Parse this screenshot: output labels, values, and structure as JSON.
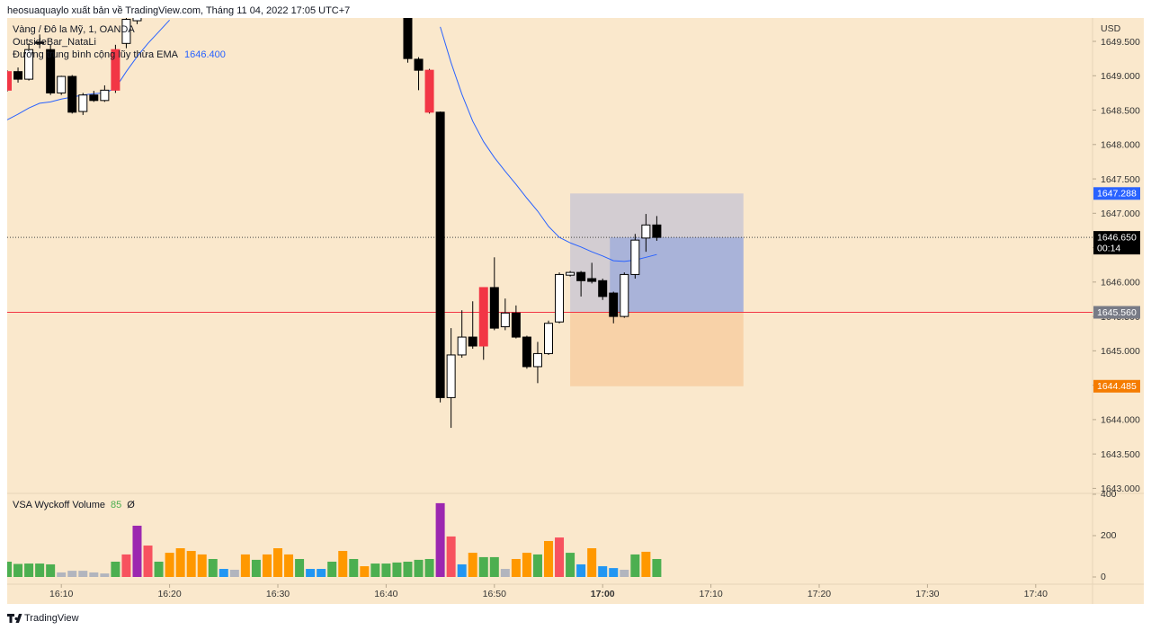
{
  "chart_data": {
    "type": "candlestick",
    "publisher_line": "heosuaquaylo xuất bản về TradingView.com, Tháng 11 04, 2022 17:05 UTC+7",
    "symbol": "Vàng / Đô la Mỹ, 1, OANDA",
    "indicator_1": "OutsideBar_NataLi",
    "ema": {
      "name": "Đường trung bình cộng lũy thừa EMA",
      "color": "#2962ff",
      "values": [
        1648.36,
        1648.44,
        1648.53,
        1648.6,
        1648.62,
        1648.66,
        1648.69,
        1648.72,
        1648.74,
        1648.75,
        1648.82,
        1649.06,
        1649.28,
        1649.47,
        1649.64,
        1649.81,
        null,
        null,
        null,
        null,
        null,
        null,
        null,
        null,
        null,
        null,
        null,
        null,
        null,
        null,
        null,
        null,
        null,
        null,
        null,
        null,
        null,
        null,
        null,
        null,
        1649.71,
        1649.19,
        1648.73,
        1648.34,
        1648.04,
        1647.81,
        1647.61,
        1647.42,
        1647.22,
        1647.03,
        1646.81,
        1646.65,
        1646.57,
        1646.51,
        1646.44,
        1646.38,
        1646.31,
        1646.3,
        1646.32,
        1646.36,
        1646.4
      ],
      "value": 1646.4,
      "value_label": "1646.400"
    },
    "currency": "USD",
    "categories": [
      "16:05",
      "16:06",
      "16:07",
      "16:08",
      "16:09",
      "16:10",
      "16:11",
      "16:12",
      "16:13",
      "16:14",
      "16:15",
      "16:16",
      "16:17",
      "16:18",
      "16:19",
      "16:20",
      "16:21",
      "16:22",
      "16:23",
      "16:24",
      "16:25",
      "16:26",
      "16:27",
      "16:28",
      "16:29",
      "16:30",
      "16:31",
      "16:32",
      "16:33",
      "16:34",
      "16:35",
      "16:36",
      "16:37",
      "16:38",
      "16:39",
      "16:40",
      "16:41",
      "16:42",
      "16:43",
      "16:44",
      "16:45",
      "16:46",
      "16:47",
      "16:48",
      "16:49",
      "16:50",
      "16:51",
      "16:52",
      "16:53",
      "16:54",
      "16:55",
      "16:56",
      "16:57",
      "16:58",
      "16:59",
      "17:00",
      "17:01",
      "17:02",
      "17:03",
      "17:04",
      "17:05"
    ],
    "open": [
      1649.06,
      1649.06,
      1648.95,
      1649.49,
      1649.38,
      1648.75,
      1648.99,
      1648.48,
      1648.72,
      1648.64,
      1648.79,
      1649.47,
      1649.8,
      null,
      null,
      null,
      null,
      null,
      null,
      null,
      null,
      null,
      null,
      null,
      null,
      null,
      null,
      null,
      null,
      null,
      null,
      null,
      null,
      null,
      null,
      null,
      null,
      1649.9,
      1649.24,
      1649.08,
      1648.47,
      1644.32,
      1644.94,
      1645.2,
      1645.07,
      1645.92,
      1645.35,
      1645.55,
      1645.2,
      1644.77,
      1644.96,
      1645.42,
      1646.1,
      1646.14,
      1646.05,
      1646.02,
      1645.84,
      1645.5,
      1646.11,
      1646.64,
      1646.83
    ],
    "high": [
      1649.08,
      1649.12,
      1649.47,
      1649.6,
      1649.45,
      1649.0,
      1649.01,
      1648.75,
      1648.78,
      1648.86,
      1649.45,
      1649.9,
      1650.0,
      null,
      null,
      null,
      null,
      null,
      null,
      null,
      null,
      null,
      null,
      null,
      null,
      null,
      null,
      null,
      null,
      null,
      null,
      null,
      null,
      null,
      null,
      null,
      null,
      1650.0,
      1649.27,
      1649.1,
      1648.48,
      1645.33,
      1645.59,
      1645.72,
      1645.92,
      1646.36,
      1645.76,
      1645.66,
      1645.22,
      1645.13,
      1645.44,
      1646.14,
      1646.16,
      1646.16,
      1646.28,
      1646.05,
      1645.86,
      1646.14,
      1646.7,
      1646.99,
      1646.96
    ],
    "low": [
      1648.77,
      1648.9,
      1648.93,
      1649.4,
      1648.72,
      1648.72,
      1648.45,
      1648.43,
      1648.62,
      1648.62,
      1648.75,
      1649.4,
      1649.75,
      null,
      null,
      null,
      null,
      null,
      null,
      null,
      null,
      null,
      null,
      null,
      null,
      null,
      null,
      null,
      null,
      null,
      null,
      null,
      null,
      null,
      null,
      null,
      null,
      1649.19,
      1648.79,
      1648.45,
      1644.25,
      1643.88,
      1644.9,
      1645.03,
      1644.87,
      1645.3,
      1645.3,
      1645.18,
      1644.74,
      1644.53,
      1644.94,
      1645.4,
      1646.08,
      1645.79,
      1645.98,
      1645.74,
      1645.4,
      1645.48,
      1646.05,
      1646.44,
      1646.6
    ],
    "close": [
      1648.79,
      1648.95,
      1649.38,
      1649.47,
      1648.75,
      1648.99,
      1648.47,
      1648.72,
      1648.64,
      1648.79,
      1649.38,
      1649.82,
      1649.9,
      null,
      null,
      null,
      null,
      null,
      null,
      null,
      null,
      null,
      null,
      null,
      null,
      null,
      null,
      null,
      null,
      null,
      null,
      null,
      null,
      null,
      null,
      null,
      null,
      1649.25,
      1649.08,
      1648.47,
      1644.32,
      1644.94,
      1645.2,
      1645.07,
      1645.92,
      1645.33,
      1645.55,
      1645.2,
      1644.77,
      1644.96,
      1645.4,
      1646.11,
      1646.14,
      1646.02,
      1646.01,
      1645.79,
      1645.5,
      1646.11,
      1646.61,
      1646.83,
      1646.65
    ],
    "candle_colors": [
      "#f23645",
      "#000000",
      "#ffffff",
      "#000000",
      "#000000",
      "#ffffff",
      "#000000",
      "#ffffff",
      "#000000",
      "#ffffff",
      "#f23645",
      "#ffffff",
      "#ffffff",
      null,
      null,
      null,
      null,
      null,
      null,
      null,
      null,
      null,
      null,
      null,
      null,
      null,
      null,
      null,
      null,
      null,
      null,
      null,
      null,
      null,
      null,
      null,
      null,
      "#000000",
      "#000000",
      "#f23645",
      "#000000",
      "#ffffff",
      "#ffffff",
      "#000000",
      "#f23645",
      "#000000",
      "#ffffff",
      "#000000",
      "#000000",
      "#ffffff",
      "#ffffff",
      "#ffffff",
      "#ffffff",
      "#000000",
      "#000000",
      "#000000",
      "#000000",
      "#ffffff",
      "#ffffff",
      "#ffffff",
      "#000000"
    ],
    "xlim": [
      "16:05",
      "17:45"
    ],
    "xticks": [
      "16:10",
      "16:20",
      "16:30",
      "16:40",
      "16:50",
      "17:00",
      "17:10",
      "17:20",
      "17:30",
      "17:40"
    ],
    "ylim": [
      1642.94,
      1649.84
    ],
    "yticks": [
      {
        "value": 1649.5,
        "label": "1649.500"
      },
      {
        "value": 1649.0,
        "label": "1649.000"
      },
      {
        "value": 1648.5,
        "label": "1648.500"
      },
      {
        "value": 1648.0,
        "label": "1648.000"
      },
      {
        "value": 1647.5,
        "label": "1647.500"
      },
      {
        "value": 1647.0,
        "label": "1647.000"
      },
      {
        "value": 1646.5,
        "label": "1646.500"
      },
      {
        "value": 1646.0,
        "label": "1646.000"
      },
      {
        "value": 1645.5,
        "label": "1645.500"
      },
      {
        "value": 1645.0,
        "label": "1645.000"
      },
      {
        "value": 1644.5,
        "label": "1644.500"
      },
      {
        "value": 1644.0,
        "label": "1644.000"
      },
      {
        "value": 1643.5,
        "label": "1643.500"
      },
      {
        "value": 1643.0,
        "label": "1643.000"
      }
    ],
    "last_price": {
      "value": 1646.65,
      "label": "1646.650",
      "countdown": "00:14"
    },
    "position": {
      "start": "16:57",
      "end": "17:13",
      "entry_time": "17:01",
      "target": 1647.288,
      "entry": {
        "value": 1645.56,
        "label": "1645.560"
      },
      "stop": 1644.485
    },
    "volume": {
      "name": "VSA Wyckoff Volume",
      "setting": 85,
      "extra": "Ø",
      "values": [
        74,
        63,
        65,
        65,
        61,
        22,
        30,
        30,
        22,
        17,
        74,
        109,
        248,
        152,
        74,
        117,
        139,
        126,
        109,
        87,
        39,
        35,
        109,
        83,
        109,
        139,
        109,
        87,
        39,
        39,
        74,
        126,
        87,
        52,
        65,
        65,
        70,
        74,
        83,
        87,
        357,
        196,
        61,
        117,
        96,
        96,
        39,
        87,
        117,
        109,
        174,
        191,
        117,
        61,
        139,
        52,
        43,
        35,
        109,
        122,
        87
      ],
      "colors": [
        "#4caf50",
        "#4caf50",
        "#4caf50",
        "#4caf50",
        "#4caf50",
        "#b2b5be",
        "#b2b5be",
        "#b2b5be",
        "#b2b5be",
        "#b2b5be",
        "#4caf50",
        "#f7525f",
        "#9c27b0",
        "#f7525f",
        "#4caf50",
        "#ff9800",
        "#ff9800",
        "#ff9800",
        "#ff9800",
        "#4caf50",
        "#2196f3",
        "#b2b5be",
        "#ff9800",
        "#4caf50",
        "#ff9800",
        "#ff9800",
        "#ff9800",
        "#4caf50",
        "#2196f3",
        "#2196f3",
        "#4caf50",
        "#ff9800",
        "#4caf50",
        "#ff9800",
        "#4caf50",
        "#4caf50",
        "#4caf50",
        "#4caf50",
        "#4caf50",
        "#4caf50",
        "#9c27b0",
        "#f7525f",
        "#2196f3",
        "#ff9800",
        "#4caf50",
        "#4caf50",
        "#b2b5be",
        "#ff9800",
        "#ff9800",
        "#4caf50",
        "#ff9800",
        "#f7525f",
        "#4caf50",
        "#2196f3",
        "#ff9800",
        "#2196f3",
        "#2196f3",
        "#b2b5be",
        "#4caf50",
        "#ff9800",
        "#4caf50"
      ],
      "vlim": [
        0,
        400
      ],
      "yticks": [
        0,
        200,
        400
      ]
    },
    "brand": "TradingView"
  }
}
